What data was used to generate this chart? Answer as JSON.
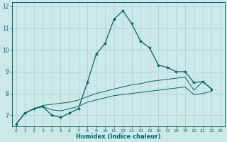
{
  "xlabel": "Humidex (Indice chaleur)",
  "ylabel": "",
  "xlim": [
    -0.5,
    23.5
  ],
  "ylim": [
    6.5,
    12.2
  ],
  "yticks": [
    7,
    8,
    9,
    10,
    11,
    12
  ],
  "xticks": [
    0,
    1,
    2,
    3,
    4,
    5,
    6,
    7,
    8,
    9,
    10,
    11,
    12,
    13,
    14,
    15,
    16,
    17,
    18,
    19,
    20,
    21,
    22,
    23
  ],
  "bg_color": "#cce8e8",
  "grid_color": "#aacfcf",
  "line_color": "#006666",
  "line1_x": [
    0,
    1,
    2,
    3,
    4,
    5,
    6,
    7,
    8,
    9,
    10,
    11,
    12,
    13,
    14,
    15,
    16,
    17,
    18,
    19,
    20,
    21,
    22
  ],
  "line1_y": [
    6.6,
    7.1,
    7.3,
    7.4,
    7.0,
    6.9,
    7.1,
    7.3,
    8.5,
    9.8,
    10.3,
    11.4,
    11.8,
    11.2,
    10.4,
    10.1,
    9.3,
    9.2,
    9.0,
    9.0,
    8.5,
    8.55,
    8.2
  ],
  "line2_x": [
    0,
    1,
    2,
    3,
    4,
    5,
    6,
    7,
    8,
    9,
    10,
    11,
    12,
    13,
    14,
    15,
    16,
    17,
    18,
    19,
    20,
    21,
    22
  ],
  "line2_y": [
    6.6,
    7.1,
    7.3,
    7.45,
    7.5,
    7.55,
    7.6,
    7.7,
    7.85,
    8.0,
    8.1,
    8.2,
    8.3,
    8.4,
    8.45,
    8.55,
    8.6,
    8.65,
    8.7,
    8.75,
    8.15,
    8.55,
    8.2
  ],
  "line3_x": [
    0,
    1,
    2,
    3,
    4,
    5,
    6,
    7,
    8,
    9,
    10,
    11,
    12,
    13,
    14,
    15,
    16,
    17,
    18,
    19,
    20,
    21,
    22
  ],
  "line3_y": [
    6.6,
    7.1,
    7.3,
    7.4,
    7.25,
    7.2,
    7.3,
    7.4,
    7.6,
    7.7,
    7.8,
    7.9,
    7.95,
    8.0,
    8.05,
    8.1,
    8.15,
    8.2,
    8.25,
    8.3,
    7.95,
    8.0,
    8.1
  ]
}
